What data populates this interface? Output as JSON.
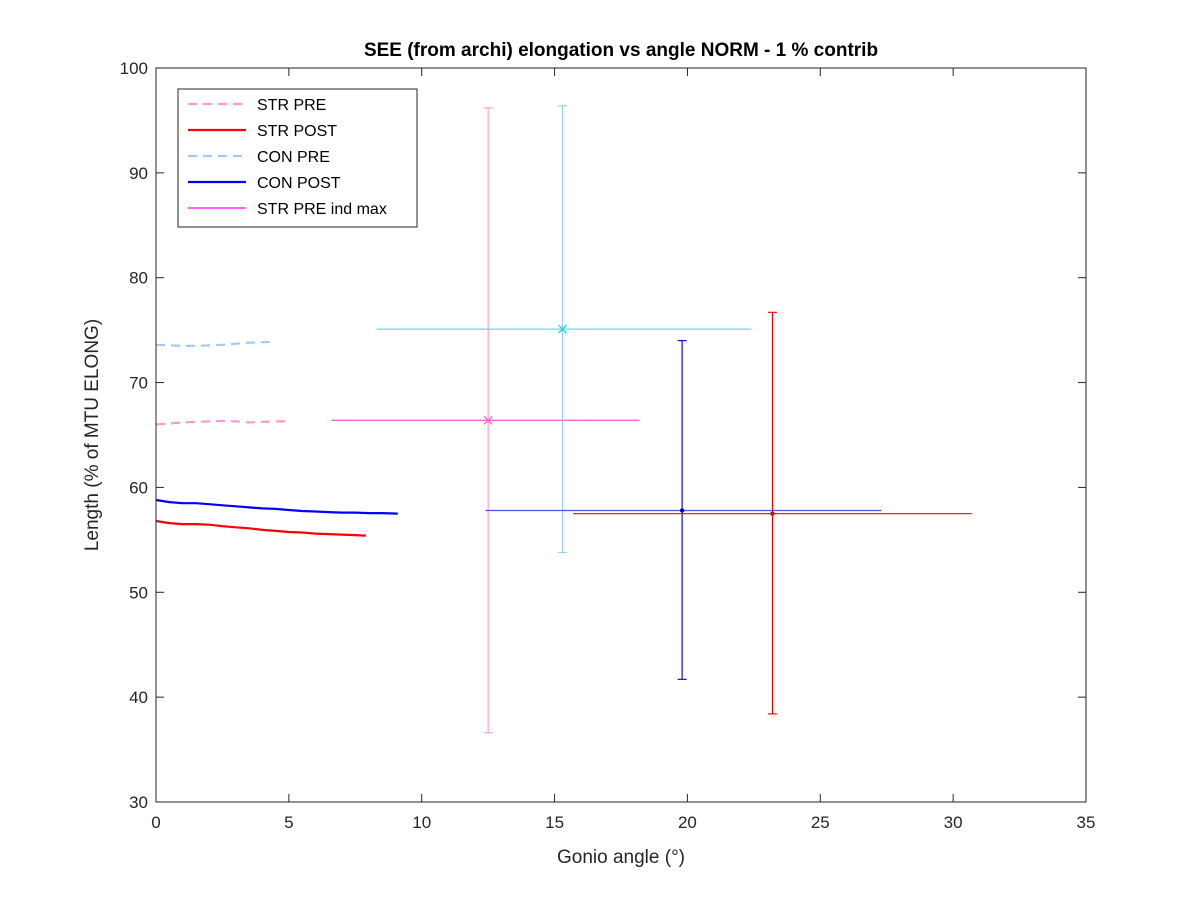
{
  "chart_data": {
    "type": "line",
    "title": "SEE (from archi) elongation vs angle NORM - 1 % contrib",
    "xlabel": "Gonio angle (°)",
    "ylabel": "Length (% of MTU ELONG)",
    "xlim": [
      0,
      35
    ],
    "ylim": [
      30,
      100
    ],
    "xticks": [
      0,
      5,
      10,
      15,
      20,
      25,
      30,
      35
    ],
    "yticks": [
      30,
      40,
      50,
      60,
      70,
      80,
      90,
      100
    ],
    "grid": false,
    "legend_position": "top-left",
    "legend": [
      "STR PRE",
      "STR POST",
      "CON PRE",
      "CON POST",
      "STR PRE ind max"
    ],
    "series": [
      {
        "name": "STR PRE",
        "color": "#ff99cc",
        "style": "dashed",
        "x": [
          0,
          0.5,
          1,
          1.5,
          2,
          2.5,
          3,
          3.5,
          4,
          4.5,
          5
        ],
        "y": [
          66.0,
          66.1,
          66.2,
          66.25,
          66.3,
          66.35,
          66.3,
          66.2,
          66.25,
          66.3,
          66.3
        ]
      },
      {
        "name": "STR POST",
        "color": "#ff0000",
        "style": "solid",
        "x": [
          0,
          0.5,
          1,
          1.5,
          2,
          2.5,
          3,
          3.5,
          4,
          4.5,
          5,
          5.5,
          6,
          6.5,
          7,
          7.5,
          7.9
        ],
        "y": [
          56.8,
          56.6,
          56.5,
          56.5,
          56.45,
          56.3,
          56.2,
          56.1,
          55.95,
          55.85,
          55.75,
          55.7,
          55.6,
          55.55,
          55.5,
          55.45,
          55.4
        ]
      },
      {
        "name": "CON PRE",
        "color": "#99ccff",
        "style": "dashed",
        "x": [
          0,
          0.5,
          1,
          1.5,
          2,
          2.5,
          3,
          3.5,
          4,
          4.5
        ],
        "y": [
          73.6,
          73.55,
          73.5,
          73.5,
          73.55,
          73.6,
          73.7,
          73.8,
          73.85,
          73.9
        ]
      },
      {
        "name": "CON POST",
        "color": "#0000ff",
        "style": "solid",
        "x": [
          0,
          0.5,
          1,
          1.5,
          2,
          2.5,
          3,
          3.5,
          4,
          4.5,
          5,
          5.5,
          6,
          6.5,
          7,
          7.5,
          8,
          8.5,
          9.1
        ],
        "y": [
          58.8,
          58.6,
          58.5,
          58.5,
          58.4,
          58.3,
          58.2,
          58.1,
          58.0,
          57.95,
          57.85,
          57.75,
          57.7,
          57.65,
          57.6,
          57.6,
          57.55,
          57.55,
          57.5
        ]
      }
    ],
    "error_bars": [
      {
        "name": "STR PRE",
        "color": "#ff99cc",
        "point_color": "#ff66cc",
        "marker": "x",
        "x": 12.5,
        "y": 66.4,
        "y_low": 36.6,
        "y_high": 96.2,
        "x_low": 6.6,
        "x_high": 18.2,
        "h_color": "#ff66cc",
        "v_color": "#ff99cc"
      },
      {
        "name": "CON PRE",
        "color": "#99ccff",
        "point_color": "#33ccee",
        "marker": "x",
        "x": 15.3,
        "y": 75.1,
        "y_low": 53.8,
        "y_high": 96.4,
        "x_low": 8.3,
        "x_high": 22.4,
        "h_color": "#66dddd",
        "v_color": "#99ccee"
      },
      {
        "name": "CON POST",
        "color": "#0000aa",
        "point_color": "#0000aa",
        "marker": "dot",
        "x": 19.8,
        "y": 57.8,
        "y_low": 41.7,
        "y_high": 74.0,
        "x_low": 12.4,
        "x_high": 27.3,
        "h_color": "#4455dd",
        "v_color": "#0000aa"
      },
      {
        "name": "STR POST",
        "color": "#dd0000",
        "point_color": "#dd0000",
        "marker": "dot",
        "x": 23.2,
        "y": 57.5,
        "y_low": 38.4,
        "y_high": 76.7,
        "x_low": 15.7,
        "x_high": 30.7,
        "h_color": "#ee2222",
        "v_color": "#dd0000"
      }
    ]
  },
  "legend_items": [
    {
      "label": "STR PRE",
      "color": "#ff99cc",
      "style": "dashed"
    },
    {
      "label": "STR POST",
      "color": "#ff0000",
      "style": "solid"
    },
    {
      "label": "CON PRE",
      "color": "#99ccff",
      "style": "dashed"
    },
    {
      "label": "CON POST",
      "color": "#0000ff",
      "style": "solid"
    },
    {
      "label": "STR PRE ind max",
      "color": "#ff00ff",
      "style": "solid-thin"
    }
  ]
}
